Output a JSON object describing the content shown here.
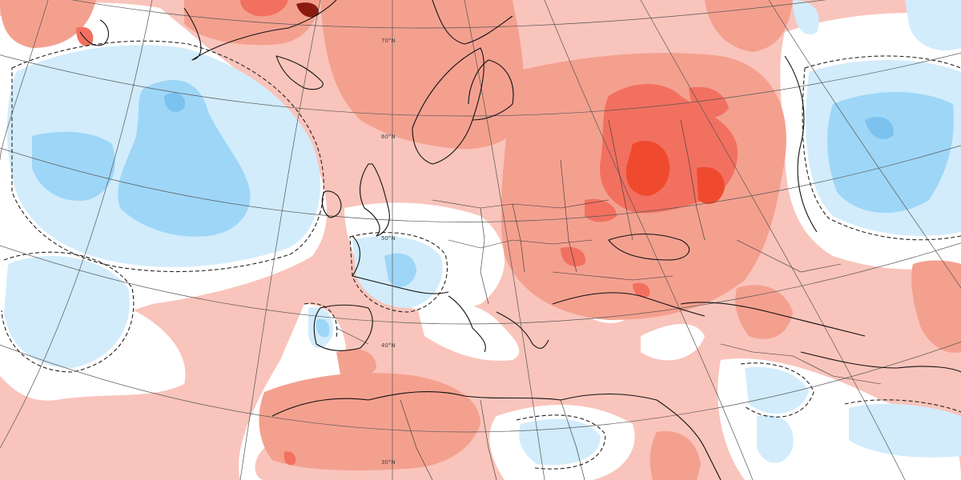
{
  "colors": {
    "background": "#ffffff",
    "warm_1": "#f9c4bb",
    "warm_2": "#f4a08f",
    "warm_3": "#f27060",
    "warm_4": "#ef4a2e",
    "warm_5": "#8b1a10",
    "cool_1": "#d2ecfb",
    "cool_2": "#9ed6f7",
    "cool_3": "#7cc2ef",
    "coastline": "#111111",
    "graticule": "#555555"
  },
  "latitude_labels": [
    "70°N",
    "60°N",
    "50°N",
    "40°N",
    "30°N"
  ]
}
